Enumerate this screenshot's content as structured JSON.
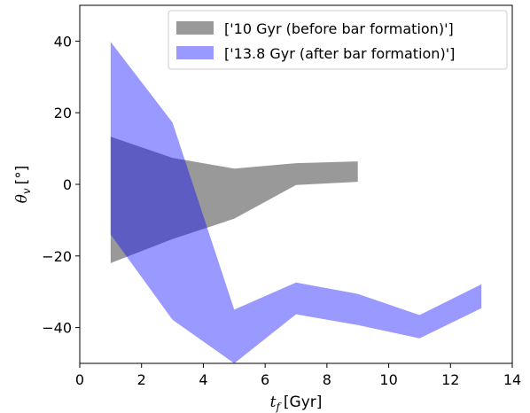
{
  "chart_data": {
    "type": "band",
    "x_label": {
      "symbol": "t",
      "sub": "f",
      "unit": "[Gyr]"
    },
    "y_label": {
      "symbol": "θ",
      "sub": "v",
      "unit": "[°]"
    },
    "xlim": [
      0,
      14
    ],
    "xticks": [
      0,
      2,
      4,
      6,
      8,
      10,
      12,
      14
    ],
    "ylim": [
      -50,
      50
    ],
    "yticks": [
      {
        "value": -40,
        "label": "−40"
      },
      {
        "value": -20,
        "label": "−20"
      },
      0,
      20,
      40
    ],
    "legend": "upper right",
    "series": [
      {
        "name": "['10 Gyr (before bar formation)']",
        "color": "gray",
        "alpha": 0.8,
        "x": [
          1,
          3,
          5,
          7,
          9
        ],
        "upper": [
          13.3,
          7.4,
          4.4,
          5.9,
          6.4
        ],
        "lower": [
          -22,
          -15.3,
          -9.6,
          -0.2,
          0.7
        ]
      },
      {
        "name": "['13.8 Gyr (after bar formation)']",
        "color": "blue",
        "alpha": 0.4,
        "x": [
          1,
          3,
          5,
          7,
          9,
          11,
          13
        ],
        "upper": [
          39.8,
          17.3,
          -35,
          -27.4,
          -30.6,
          -36.5,
          -27.9
        ],
        "lower": [
          -14,
          -37.8,
          -50,
          -36.3,
          -39.3,
          -43,
          -34.6
        ]
      }
    ]
  }
}
